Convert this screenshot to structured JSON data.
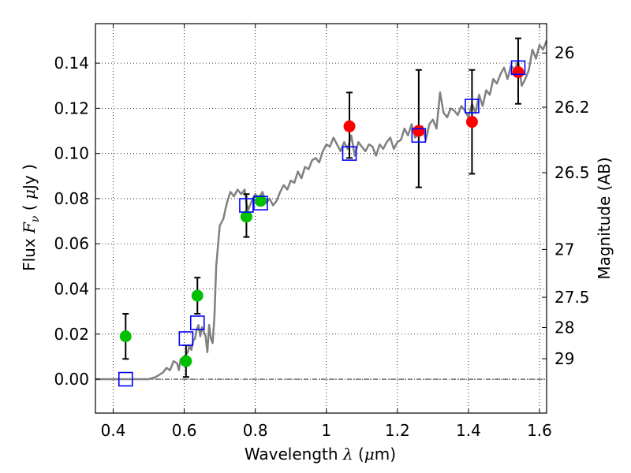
{
  "chart_data": {
    "type": "scatter",
    "xlabel": {
      "pre": "Wavelength",
      "lambda": "λ",
      "unit_open": "(",
      "mu": "μ",
      "unit_rest": "m)"
    },
    "ylabel": {
      "pre": "Flux",
      "sym": "F",
      "sub": "ν",
      "open": "(",
      "mu": "μ",
      "unit_rest": "Jy )"
    },
    "ylabel_right": "Magnitude (AB)",
    "xlim": [
      0.35,
      1.62
    ],
    "ylim": [
      -0.015,
      0.1575
    ],
    "grid": true,
    "x_ticks": [
      {
        "value": 0.4,
        "label": "0.4"
      },
      {
        "value": 0.6,
        "label": "0.6"
      },
      {
        "value": 0.8,
        "label": "0.8"
      },
      {
        "value": 1.0,
        "label": "1"
      },
      {
        "value": 1.2,
        "label": "1.2"
      },
      {
        "value": 1.4,
        "label": "1.4"
      },
      {
        "value": 1.6,
        "label": "1.6"
      }
    ],
    "y_ticks": [
      {
        "value": 0.0,
        "label": "0.00"
      },
      {
        "value": 0.02,
        "label": "0.02"
      },
      {
        "value": 0.04,
        "label": "0.04"
      },
      {
        "value": 0.06,
        "label": "0.06"
      },
      {
        "value": 0.08,
        "label": "0.08"
      },
      {
        "value": 0.1,
        "label": "0.10"
      },
      {
        "value": 0.12,
        "label": "0.12"
      },
      {
        "value": 0.14,
        "label": "0.14"
      }
    ],
    "right_ticks": [
      {
        "flux": 0.1445,
        "label": "26"
      },
      {
        "flux": 0.1205,
        "label": "26.2"
      },
      {
        "flux": 0.0915,
        "label": "26.5"
      },
      {
        "flux": 0.0575,
        "label": "27"
      },
      {
        "flux": 0.0363,
        "label": "27.5"
      },
      {
        "flux": 0.0229,
        "label": "28"
      },
      {
        "flux": 0.0091,
        "label": "29"
      }
    ],
    "zero_line": 0.0,
    "model_spectrum": {
      "color": "#808080",
      "x": [
        0.35,
        0.5,
        0.52,
        0.54,
        0.55,
        0.56,
        0.57,
        0.58,
        0.585,
        0.59,
        0.6,
        0.605,
        0.61,
        0.615,
        0.62,
        0.625,
        0.63,
        0.635,
        0.64,
        0.645,
        0.65,
        0.655,
        0.66,
        0.665,
        0.67,
        0.675,
        0.68,
        0.685,
        0.69,
        0.7,
        0.71,
        0.72,
        0.73,
        0.74,
        0.75,
        0.76,
        0.77,
        0.775,
        0.78,
        0.79,
        0.8,
        0.81,
        0.82,
        0.83,
        0.84,
        0.85,
        0.86,
        0.87,
        0.88,
        0.89,
        0.9,
        0.91,
        0.92,
        0.93,
        0.94,
        0.95,
        0.96,
        0.97,
        0.98,
        0.99,
        1.0,
        1.01,
        1.02,
        1.03,
        1.04,
        1.05,
        1.06,
        1.07,
        1.08,
        1.09,
        1.1,
        1.11,
        1.12,
        1.13,
        1.14,
        1.15,
        1.16,
        1.17,
        1.18,
        1.19,
        1.2,
        1.21,
        1.22,
        1.23,
        1.24,
        1.25,
        1.26,
        1.27,
        1.28,
        1.29,
        1.3,
        1.31,
        1.32,
        1.33,
        1.34,
        1.35,
        1.36,
        1.37,
        1.38,
        1.39,
        1.4,
        1.41,
        1.42,
        1.43,
        1.44,
        1.45,
        1.46,
        1.47,
        1.48,
        1.49,
        1.5,
        1.51,
        1.52,
        1.53,
        1.54,
        1.55,
        1.56,
        1.57,
        1.58,
        1.59,
        1.6,
        1.61,
        1.62
      ],
      "y": [
        0.0,
        0.0,
        0.001,
        0.003,
        0.005,
        0.004,
        0.008,
        0.007,
        0.004,
        0.009,
        0.008,
        0.011,
        0.012,
        0.015,
        0.013,
        0.017,
        0.018,
        0.022,
        0.024,
        0.019,
        0.023,
        0.021,
        0.019,
        0.012,
        0.024,
        0.018,
        0.016,
        0.028,
        0.05,
        0.068,
        0.071,
        0.078,
        0.083,
        0.081,
        0.084,
        0.082,
        0.084,
        0.078,
        0.075,
        0.079,
        0.082,
        0.08,
        0.083,
        0.078,
        0.08,
        0.077,
        0.079,
        0.083,
        0.086,
        0.084,
        0.088,
        0.087,
        0.092,
        0.089,
        0.094,
        0.093,
        0.097,
        0.098,
        0.096,
        0.101,
        0.104,
        0.103,
        0.107,
        0.104,
        0.101,
        0.105,
        0.102,
        0.108,
        0.099,
        0.105,
        0.103,
        0.101,
        0.104,
        0.103,
        0.099,
        0.104,
        0.102,
        0.105,
        0.107,
        0.102,
        0.105,
        0.106,
        0.111,
        0.108,
        0.113,
        0.107,
        0.109,
        0.112,
        0.106,
        0.113,
        0.115,
        0.111,
        0.127,
        0.118,
        0.116,
        0.12,
        0.119,
        0.117,
        0.121,
        0.119,
        0.116,
        0.122,
        0.118,
        0.126,
        0.121,
        0.128,
        0.126,
        0.133,
        0.131,
        0.135,
        0.138,
        0.133,
        0.139,
        0.137,
        0.141,
        0.13,
        0.133,
        0.137,
        0.146,
        0.142,
        0.148,
        0.146,
        0.15
      ]
    },
    "square_markers": {
      "color": "#0000ff",
      "points": [
        {
          "x": 0.435,
          "y": 0.0
        },
        {
          "x": 0.605,
          "y": 0.018
        },
        {
          "x": 0.637,
          "y": 0.025
        },
        {
          "x": 0.775,
          "y": 0.077
        },
        {
          "x": 0.815,
          "y": 0.078
        },
        {
          "x": 1.065,
          "y": 0.1
        },
        {
          "x": 1.26,
          "y": 0.108
        },
        {
          "x": 1.41,
          "y": 0.121
        },
        {
          "x": 1.54,
          "y": 0.138
        }
      ]
    },
    "green_points": {
      "color": "#00c000",
      "points": [
        {
          "x": 0.435,
          "y": 0.019,
          "err_lo": 0.009,
          "err_hi": 0.029
        },
        {
          "x": 0.605,
          "y": 0.008,
          "err_lo": 0.001,
          "err_hi": 0.015
        },
        {
          "x": 0.637,
          "y": 0.037,
          "err_lo": 0.029,
          "err_hi": 0.045
        },
        {
          "x": 0.775,
          "y": 0.072,
          "err_lo": 0.063,
          "err_hi": 0.082
        },
        {
          "x": 0.815,
          "y": 0.079,
          "err_lo": null,
          "err_hi": null
        }
      ]
    },
    "red_points": {
      "color": "#ff0000",
      "points": [
        {
          "x": 1.065,
          "y": 0.112,
          "err_lo": 0.098,
          "err_hi": 0.127
        },
        {
          "x": 1.26,
          "y": 0.11,
          "err_lo": 0.085,
          "err_hi": 0.137
        },
        {
          "x": 1.41,
          "y": 0.114,
          "err_lo": 0.091,
          "err_hi": 0.137
        },
        {
          "x": 1.54,
          "y": 0.136,
          "err_lo": 0.122,
          "err_hi": 0.151
        }
      ]
    }
  }
}
